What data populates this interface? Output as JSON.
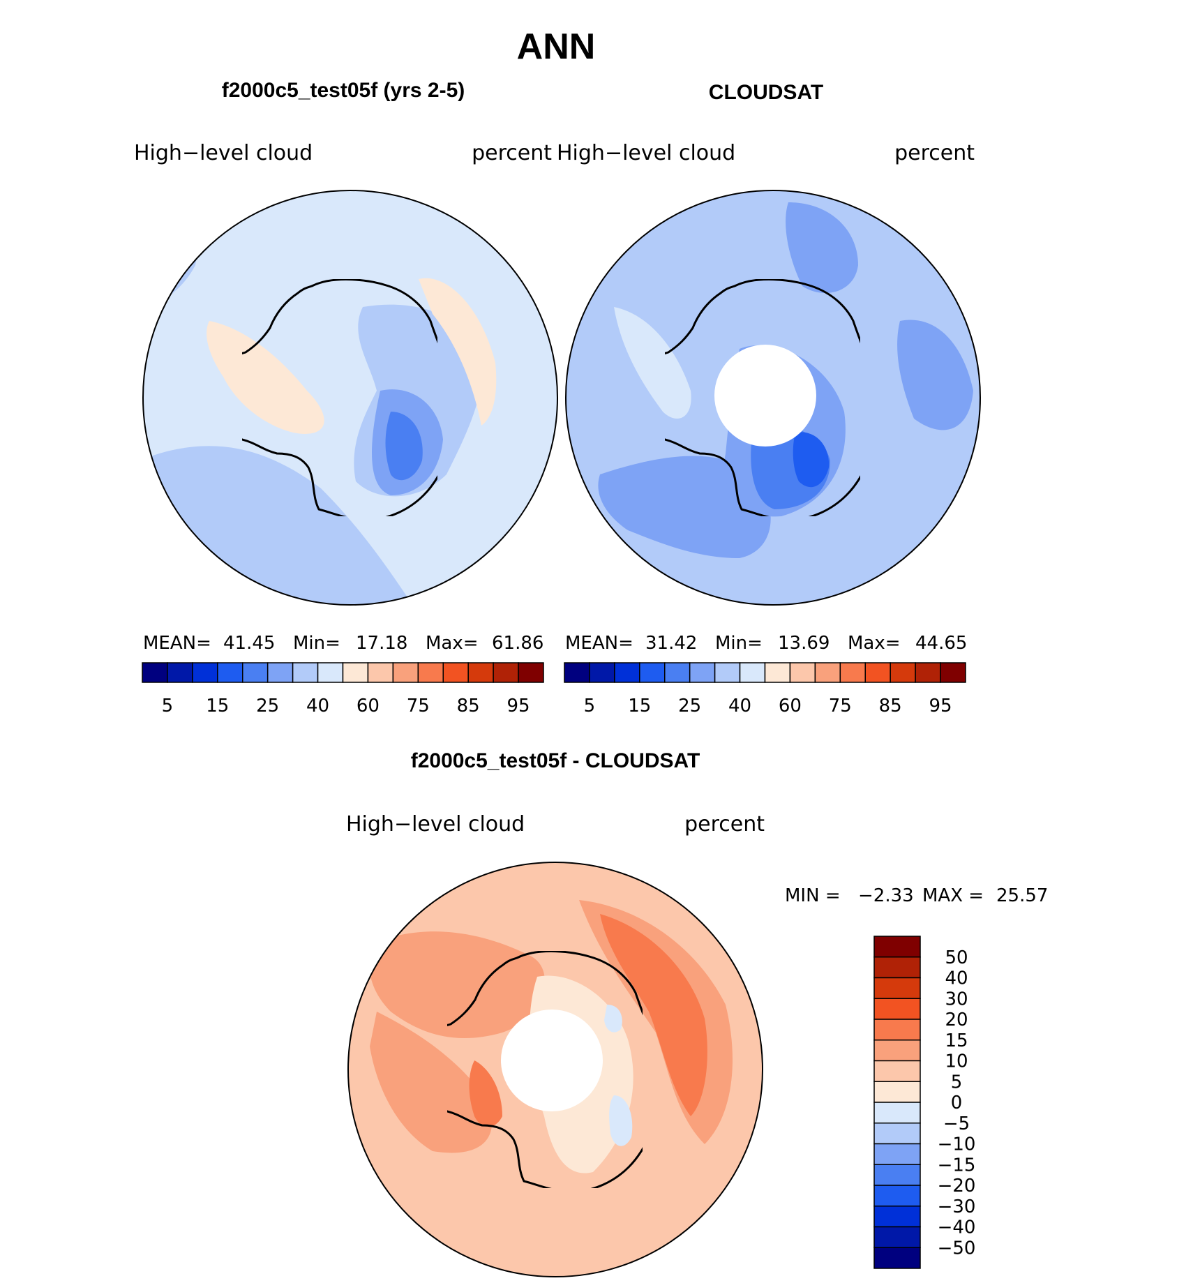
{
  "main_title": "ANN",
  "panels": [
    {
      "title": "f2000c5_test05f (yrs 2-5)",
      "left_label": "High−level  cloud",
      "right_label": "percent",
      "stats": {
        "mean_label": "MEAN=",
        "mean": "41.45",
        "min_label": "Min=",
        "min": "17.18",
        "max_label": "Max=",
        "max": "61.86"
      }
    },
    {
      "title": "CLOUDSAT",
      "left_label": "High−level  cloud",
      "right_label": "percent",
      "stats": {
        "mean_label": "MEAN=",
        "mean": "31.42",
        "min_label": "Min=",
        "min": "13.69",
        "max_label": "Max=",
        "max": "44.65"
      }
    },
    {
      "title": "f2000c5_test05f - CLOUDSAT",
      "left_label": "High−level  cloud",
      "right_label": "percent",
      "stats": {
        "min_label": "MIN =",
        "min": "−2.33",
        "max_label": "MAX =",
        "max": "25.57"
      }
    }
  ],
  "colorbar_top": {
    "colors": [
      "#00007f",
      "#0018a8",
      "#0030d8",
      "#1e5cf0",
      "#4a7ff2",
      "#7ea3f5",
      "#b2cbf9",
      "#d9e8fb",
      "#fde8d6",
      "#fcc7ab",
      "#f9a17c",
      "#f87a4d",
      "#f25322",
      "#d53a0c",
      "#b02206",
      "#7f0000"
    ],
    "tick_labels": [
      "5",
      "15",
      "25",
      "40",
      "60",
      "75",
      "85",
      "95"
    ]
  },
  "colorbar_diff": {
    "colors": [
      "#00007f",
      "#0018a8",
      "#0030d8",
      "#1e5cf0",
      "#4a7ff2",
      "#7ea3f5",
      "#b2cbf9",
      "#d9e8fb",
      "#fde8d6",
      "#fcc7ab",
      "#f9a17c",
      "#f87a4d",
      "#f25322",
      "#d53a0c",
      "#b02206",
      "#7f0000"
    ],
    "tick_labels": [
      "50",
      "40",
      "30",
      "20",
      "15",
      "10",
      "5",
      "0",
      "−5",
      "−10",
      "−15",
      "−20",
      "−30",
      "−40",
      "−50"
    ]
  },
  "chart_data": [
    {
      "type": "heatmap",
      "title": "f2000c5_test05f (yrs 2-5)",
      "variable": "High−level  cloud",
      "units": "percent",
      "projection": "south polar stereographic",
      "mean": 41.45,
      "min": 17.18,
      "max": 61.86,
      "contour_levels": [
        5,
        10,
        15,
        20,
        25,
        30,
        40,
        50,
        60,
        70,
        75,
        80,
        85,
        90,
        95
      ]
    },
    {
      "type": "heatmap",
      "title": "CLOUDSAT",
      "variable": "High−level  cloud",
      "units": "percent",
      "projection": "south polar stereographic",
      "mean": 31.42,
      "min": 13.69,
      "max": 44.65,
      "contour_levels": [
        5,
        10,
        15,
        20,
        25,
        30,
        40,
        50,
        60,
        70,
        75,
        80,
        85,
        90,
        95
      ]
    },
    {
      "type": "heatmap",
      "title": "f2000c5_test05f - CLOUDSAT",
      "variable": "High−level  cloud",
      "units": "percent",
      "projection": "south polar stereographic",
      "min": -2.33,
      "max": 25.57,
      "contour_levels": [
        -50,
        -40,
        -30,
        -20,
        -15,
        -10,
        -5,
        0,
        5,
        10,
        15,
        20,
        30,
        40,
        50
      ]
    }
  ]
}
